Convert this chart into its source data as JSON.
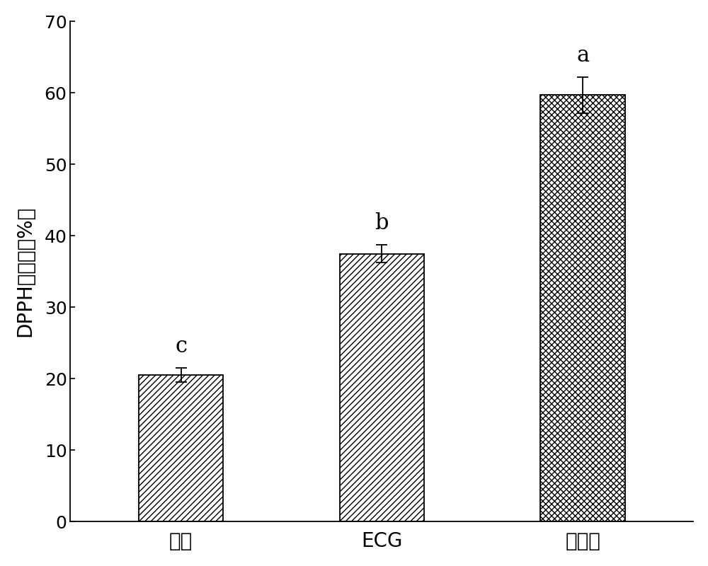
{
  "categories": [
    "果胶",
    "ECG",
    "组合物"
  ],
  "values": [
    20.5,
    37.5,
    59.7
  ],
  "errors": [
    1.0,
    1.2,
    2.5
  ],
  "sig_labels": [
    "c",
    "b",
    "a"
  ],
  "ylabel": "DPPH清除率（%）",
  "ylim": [
    0,
    70
  ],
  "yticks": [
    0,
    10,
    20,
    30,
    40,
    50,
    60,
    70
  ],
  "hatch_patterns": [
    "////",
    "////",
    "xxxx"
  ],
  "bar_facecolor": "#ffffff",
  "bar_edgecolor": "#000000",
  "bar_width": 0.42,
  "label_fontsize": 20,
  "tick_fontsize": 18,
  "sig_fontsize": 22,
  "background_color": "#ffffff",
  "figsize": [
    10,
    8
  ],
  "dpi": 100
}
